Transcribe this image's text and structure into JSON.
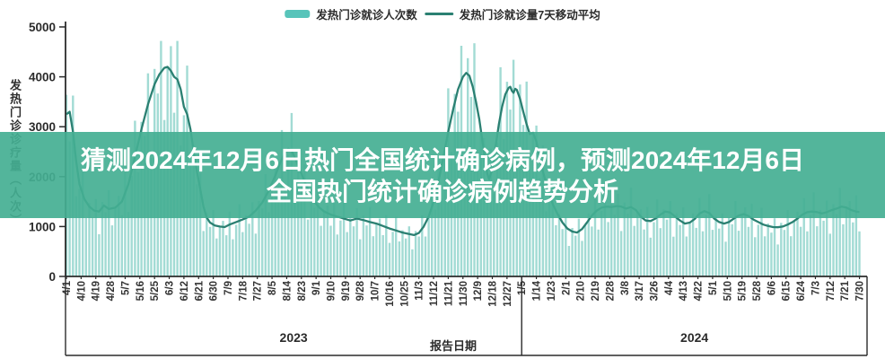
{
  "legend": {
    "bar_label": "发热门诊就诊人次数",
    "line_label": "发热门诊就诊量7天移动平均"
  },
  "overlay": {
    "line1": "猜测2024年12月6日热门全国统计确诊病例，预测2024年12月6日",
    "line2": "全国热门统计确诊病例趋势分析",
    "bg_color": "#44af93",
    "text_color": "#ffffff"
  },
  "colors": {
    "background": "#ffffff",
    "axis": "#2b2b2b",
    "bar": "#7ecdc4",
    "line": "#2b8072",
    "legend_bar_swatch": "#58c4ba"
  },
  "chart_data": {
    "type": "bar",
    "subtype": "daily bars + 7-day moving average line",
    "title": "",
    "ylabel": "发热门诊诊疗量（人次）",
    "xlabel": "报告日期",
    "ylim": [
      0,
      5000
    ],
    "y_ticks": [
      0,
      1000,
      2000,
      3000,
      4000,
      5000
    ],
    "grid": "off",
    "legend_position": "top-center",
    "x_start_date": "2023/4/1",
    "x_end_date": "2024/7/30",
    "tick_interval_days": 9,
    "x_tick_labels": [
      "4/1",
      "4/10",
      "4/19",
      "4/28",
      "5/7",
      "5/16",
      "5/25",
      "6/3",
      "6/12",
      "6/21",
      "6/30",
      "7/9",
      "7/18",
      "7/27",
      "8/5",
      "8/14",
      "8/23",
      "9/1",
      "9/10",
      "9/19",
      "9/28",
      "10/7",
      "10/16",
      "10/25",
      "11/3",
      "11/12",
      "11/21",
      "11/30",
      "12/9",
      "12/18",
      "12/27",
      "1/5",
      "1/14",
      "1/23",
      "2/1",
      "2/10",
      "2/19",
      "2/28",
      "3/8",
      "3/17",
      "3/26",
      "4/4",
      "4/13",
      "4/22",
      "5/1",
      "5/10",
      "5/19",
      "5/28",
      "6/6",
      "6/15",
      "6/24",
      "7/3",
      "7/12",
      "7/21",
      "7/30"
    ],
    "year_groups": [
      {
        "label": "2023",
        "start_tick": 0,
        "end_tick": 31
      },
      {
        "label": "2024",
        "start_tick": 31,
        "end_tick": 54
      }
    ],
    "series": [
      {
        "name": "发热门诊就诊人次数",
        "type": "bar",
        "color": "#7ecdc4",
        "note": "daily bar values = moving-average keyframes interpolated x noise multipliers"
      },
      {
        "name": "发热门诊就诊量7天移动平均",
        "type": "line",
        "color": "#2b8072",
        "keyframes_day_value": [
          [
            0,
            3250
          ],
          [
            2,
            3300
          ],
          [
            4,
            2900
          ],
          [
            6,
            2300
          ],
          [
            8,
            1850
          ],
          [
            11,
            1550
          ],
          [
            14,
            1400
          ],
          [
            17,
            1320
          ],
          [
            20,
            1300
          ],
          [
            23,
            1420
          ],
          [
            26,
            1350
          ],
          [
            30,
            1380
          ],
          [
            34,
            1500
          ],
          [
            38,
            1850
          ],
          [
            42,
            2400
          ],
          [
            46,
            2950
          ],
          [
            50,
            3450
          ],
          [
            54,
            3850
          ],
          [
            57,
            4050
          ],
          [
            60,
            4180
          ],
          [
            62,
            4200
          ],
          [
            64,
            4120
          ],
          [
            66,
            4000
          ],
          [
            68,
            3950
          ],
          [
            70,
            3750
          ],
          [
            72,
            3400
          ],
          [
            74,
            3250
          ],
          [
            76,
            2950
          ],
          [
            78,
            2500
          ],
          [
            80,
            2100
          ],
          [
            82,
            1750
          ],
          [
            84,
            1400
          ],
          [
            86,
            1180
          ],
          [
            88,
            1080
          ],
          [
            91,
            1020
          ],
          [
            94,
            1000
          ],
          [
            97,
            990
          ],
          [
            100,
            1040
          ],
          [
            104,
            1090
          ],
          [
            108,
            1140
          ],
          [
            112,
            1200
          ],
          [
            116,
            1320
          ],
          [
            120,
            1480
          ],
          [
            124,
            1720
          ],
          [
            128,
            2020
          ],
          [
            131,
            2280
          ],
          [
            134,
            2480
          ],
          [
            136,
            2560
          ],
          [
            138,
            2520
          ],
          [
            140,
            2380
          ],
          [
            143,
            2150
          ],
          [
            146,
            1900
          ],
          [
            149,
            1680
          ],
          [
            152,
            1500
          ],
          [
            155,
            1380
          ],
          [
            158,
            1300
          ],
          [
            162,
            1240
          ],
          [
            166,
            1200
          ],
          [
            170,
            1160
          ],
          [
            174,
            1120
          ],
          [
            178,
            1160
          ],
          [
            182,
            1130
          ],
          [
            186,
            1090
          ],
          [
            190,
            1060
          ],
          [
            194,
            1010
          ],
          [
            198,
            960
          ],
          [
            202,
            920
          ],
          [
            206,
            880
          ],
          [
            210,
            850
          ],
          [
            213,
            830
          ],
          [
            216,
            870
          ],
          [
            219,
            1000
          ],
          [
            222,
            1200
          ],
          [
            225,
            1500
          ],
          [
            228,
            1900
          ],
          [
            231,
            2400
          ],
          [
            234,
            2900
          ],
          [
            237,
            3350
          ],
          [
            240,
            3750
          ],
          [
            243,
            4000
          ],
          [
            245,
            4080
          ],
          [
            247,
            4020
          ],
          [
            249,
            3800
          ],
          [
            251,
            3500
          ],
          [
            253,
            3150
          ],
          [
            255,
            2700
          ],
          [
            257,
            2250
          ],
          [
            258,
            2050
          ],
          [
            259,
            1950
          ],
          [
            261,
            2150
          ],
          [
            263,
            2600
          ],
          [
            265,
            3050
          ],
          [
            267,
            3400
          ],
          [
            269,
            3650
          ],
          [
            271,
            3780
          ],
          [
            272,
            3800
          ],
          [
            273,
            3720
          ],
          [
            274,
            3680
          ],
          [
            275,
            3760
          ],
          [
            276,
            3740
          ],
          [
            278,
            3560
          ],
          [
            280,
            3300
          ],
          [
            282,
            3050
          ],
          [
            284,
            2850
          ],
          [
            286,
            2880
          ],
          [
            288,
            2700
          ],
          [
            290,
            2400
          ],
          [
            292,
            2100
          ],
          [
            295,
            1750
          ],
          [
            298,
            1450
          ],
          [
            301,
            1250
          ],
          [
            304,
            1080
          ],
          [
            307,
            960
          ],
          [
            310,
            900
          ],
          [
            313,
            880
          ],
          [
            316,
            950
          ],
          [
            319,
            1080
          ],
          [
            322,
            1220
          ],
          [
            325,
            1320
          ],
          [
            328,
            1380
          ],
          [
            331,
            1400
          ],
          [
            334,
            1390
          ],
          [
            337,
            1410
          ],
          [
            340,
            1400
          ],
          [
            343,
            1360
          ],
          [
            346,
            1390
          ],
          [
            349,
            1330
          ],
          [
            352,
            1200
          ],
          [
            355,
            1120
          ],
          [
            358,
            1110
          ],
          [
            361,
            1160
          ],
          [
            364,
            1240
          ],
          [
            367,
            1300
          ],
          [
            370,
            1280
          ],
          [
            373,
            1200
          ],
          [
            376,
            1120
          ],
          [
            379,
            1060
          ],
          [
            382,
            1080
          ],
          [
            385,
            1150
          ],
          [
            388,
            1260
          ],
          [
            391,
            1310
          ],
          [
            394,
            1270
          ],
          [
            397,
            1160
          ],
          [
            400,
            1090
          ],
          [
            403,
            1060
          ],
          [
            406,
            1090
          ],
          [
            409,
            1160
          ],
          [
            412,
            1220
          ],
          [
            415,
            1250
          ],
          [
            418,
            1210
          ],
          [
            421,
            1140
          ],
          [
            424,
            1090
          ],
          [
            427,
            1040
          ],
          [
            430,
            1010
          ],
          [
            433,
            990
          ],
          [
            436,
            985
          ],
          [
            439,
            1000
          ],
          [
            442,
            1040
          ],
          [
            445,
            1090
          ],
          [
            448,
            1160
          ],
          [
            451,
            1240
          ],
          [
            454,
            1290
          ],
          [
            457,
            1300
          ],
          [
            460,
            1290
          ],
          [
            463,
            1260
          ],
          [
            466,
            1290
          ],
          [
            469,
            1330
          ],
          [
            472,
            1360
          ],
          [
            475,
            1400
          ],
          [
            478,
            1380
          ],
          [
            481,
            1330
          ],
          [
            484,
            1300
          ],
          [
            486,
            1290
          ]
        ]
      }
    ],
    "bar_sample_step_days": 2,
    "bar_noise_multipliers": [
      1.12,
      0.82,
      1.25,
      0.7,
      0.95,
      1.3,
      0.78,
      1.05,
      0.88,
      1.18,
      0.65,
      1.08,
      0.92,
      1.28,
      0.75,
      1.0
    ],
    "bar_max_cap": 4720
  }
}
